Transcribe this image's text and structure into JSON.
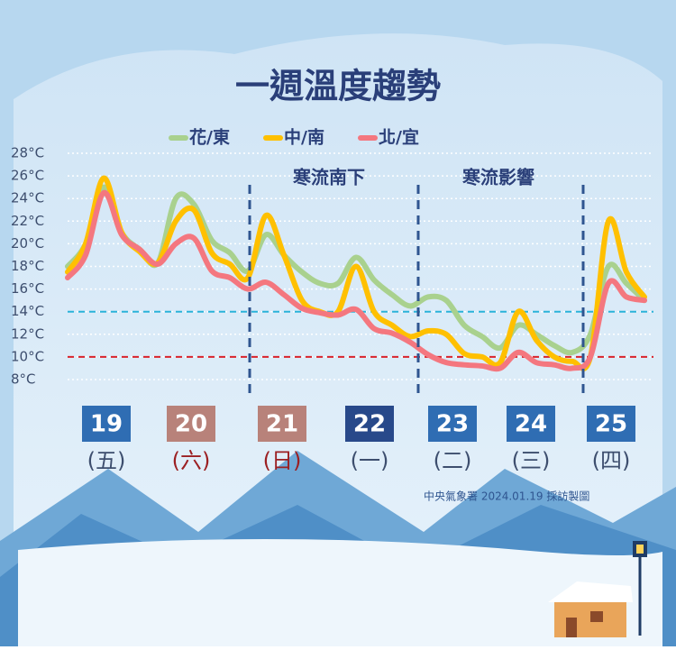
{
  "chart_data": {
    "type": "line",
    "title": "一週溫度趨勢",
    "categories": [
      null,
      null,
      null,
      null,
      null,
      null,
      null,
      null,
      null,
      null,
      null,
      null,
      null,
      null,
      null,
      null,
      null,
      null,
      null,
      null,
      null,
      null,
      null,
      null,
      null,
      null,
      null,
      null,
      null,
      null,
      null,
      null,
      null
    ],
    "series": [
      {
        "name": "花/東",
        "color": "#a9d18e",
        "values": [
          18,
          20,
          25,
          21,
          19.5,
          18.3,
          24,
          23.5,
          20.3,
          19.2,
          17.6,
          20.8,
          19,
          17.5,
          16.5,
          16.5,
          18.8,
          16.8,
          15.5,
          14.5,
          15.3,
          15,
          12.8,
          11.8,
          10.8,
          12.8,
          12,
          11,
          10.4,
          12,
          18,
          16.5,
          15
        ]
      },
      {
        "name": "中/南",
        "color": "#ffc000",
        "values": [
          17.5,
          20,
          25.8,
          21,
          19.3,
          18.3,
          22,
          23,
          19.2,
          18.2,
          17,
          22.5,
          19,
          15,
          14,
          14,
          18,
          14,
          12.8,
          11.8,
          12.3,
          12,
          10.3,
          10,
          9.5,
          14,
          11.5,
          10,
          9.6,
          10,
          22,
          17.5,
          15.3
        ]
      },
      {
        "name": "北/宜",
        "color": "#f4777f",
        "values": [
          17,
          19,
          24.5,
          20.8,
          19.5,
          18.2,
          20,
          20.5,
          17.6,
          17,
          16,
          16.6,
          15.5,
          14.3,
          13.9,
          13.7,
          14.2,
          12.5,
          12.1,
          11.3,
          10.2,
          9.5,
          9.3,
          9.2,
          9,
          10.4,
          9.5,
          9.3,
          9,
          10,
          16.5,
          15.3,
          15
        ]
      }
    ],
    "ylim": [
      8,
      28
    ],
    "yticks": [
      {
        "value": 8,
        "label": "8°C"
      },
      {
        "value": 10,
        "label": "10°C"
      },
      {
        "value": 12,
        "label": "12°C"
      },
      {
        "value": 14,
        "label": "14°C"
      },
      {
        "value": 16,
        "label": "16°C"
      },
      {
        "value": 18,
        "label": "18°C"
      },
      {
        "value": 20,
        "label": "20°C"
      },
      {
        "value": 22,
        "label": "22°C"
      },
      {
        "value": 24,
        "label": "24°C"
      },
      {
        "value": 26,
        "label": "26°C"
      },
      {
        "value": 28,
        "label": "28°C"
      }
    ],
    "grid": true,
    "reference_lines": [
      {
        "value": 14,
        "color": "#2bb3d9"
      },
      {
        "value": 10,
        "color": "#d9232b"
      }
    ],
    "annotations": [
      "寒流南下",
      "寒流影響"
    ],
    "days": [
      {
        "date": "19",
        "weekday": "(五)",
        "box_color": "#2f6db3",
        "text_color": "#3d4e6e"
      },
      {
        "date": "20",
        "weekday": "(六)",
        "box_color": "#b8827a",
        "text_color": "#9b1f22"
      },
      {
        "date": "21",
        "weekday": "(日)",
        "box_color": "#b8827a",
        "text_color": "#9b1f22"
      },
      {
        "date": "22",
        "weekday": "(一)",
        "box_color": "#28498a",
        "text_color": "#3d4e6e"
      },
      {
        "date": "23",
        "weekday": "(二)",
        "box_color": "#2f6db3",
        "text_color": "#3d4e6e"
      },
      {
        "date": "24",
        "weekday": "(三)",
        "box_color": "#2f6db3",
        "text_color": "#3d4e6e"
      },
      {
        "date": "25",
        "weekday": "(四)",
        "box_color": "#2f6db3",
        "text_color": "#3d4e6e"
      }
    ],
    "source": "中央氣象署 2024.01.19 採訪製圖"
  }
}
